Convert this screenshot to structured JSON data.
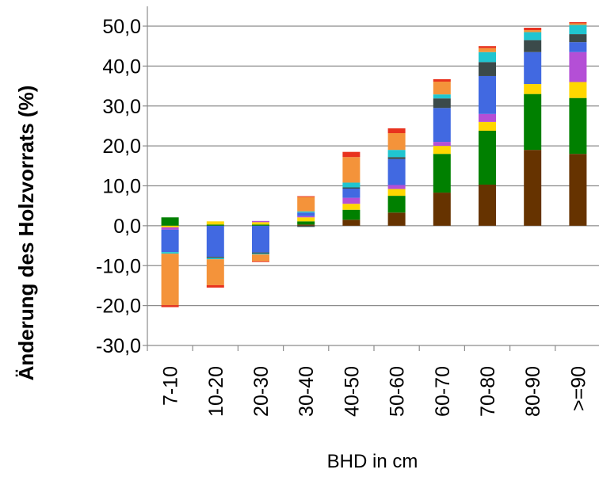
{
  "chart_data": {
    "type": "bar",
    "stacked": true,
    "title": "",
    "xlabel": "BHD in cm",
    "ylabel": "Änderung des Holzvorrats (%)",
    "ylim": [
      -30,
      50
    ],
    "yticks": [
      "-30,0",
      "-20,0",
      "-10,0",
      "0,0",
      "10,0",
      "20,0",
      "30,0",
      "40,0",
      "50,0"
    ],
    "ytick_values": [
      -30,
      -20,
      -10,
      0,
      10,
      20,
      30,
      40,
      50
    ],
    "grid": true,
    "legend": "none",
    "categories": [
      "7-10",
      "10-20",
      "20-30",
      "30-40",
      "40-50",
      "50-60",
      "60-70",
      "70-80",
      "80-90",
      ">=90"
    ],
    "series": [
      {
        "color": "#663300",
        "values": [
          0.0,
          0.0,
          0.0,
          0.3,
          1.5,
          3.3,
          8.3,
          10.3,
          19.0,
          18.0
        ]
      },
      {
        "color": "#008000",
        "values": [
          2.1,
          0.3,
          0.3,
          0.8,
          2.5,
          4.2,
          9.7,
          13.5,
          14.0,
          14.0
        ]
      },
      {
        "color": "#FFD700",
        "values": [
          -0.4,
          0.8,
          0.6,
          1.0,
          1.5,
          1.7,
          2.0,
          2.2,
          2.5,
          4.0
        ]
      },
      {
        "color": "#B44FD6",
        "values": [
          -0.6,
          0.0,
          0.3,
          0.3,
          1.5,
          1.0,
          1.0,
          2.0,
          0.0,
          7.5
        ]
      },
      {
        "color": "#4169E1",
        "values": [
          -5.6,
          -7.8,
          -6.7,
          0.9,
          2.3,
          6.5,
          8.5,
          9.5,
          8.0,
          2.5
        ]
      },
      {
        "color": "#3B4A4A",
        "values": [
          0.0,
          -0.3,
          -0.3,
          -0.3,
          0.3,
          0.5,
          2.4,
          3.5,
          3.0,
          2.0
        ]
      },
      {
        "color": "#20C5D0",
        "values": [
          -0.4,
          -0.3,
          -0.2,
          0.3,
          1.2,
          1.8,
          1.0,
          2.5,
          2.0,
          2.3
        ]
      },
      {
        "color": "#F4933A",
        "values": [
          -12.9,
          -6.5,
          -1.7,
          3.6,
          6.4,
          4.2,
          3.2,
          1.0,
          0.5,
          0.4
        ]
      },
      {
        "color": "#E8321E",
        "values": [
          -0.5,
          -0.6,
          -0.2,
          0.2,
          1.3,
          1.2,
          0.6,
          0.5,
          0.6,
          0.3
        ]
      }
    ]
  }
}
